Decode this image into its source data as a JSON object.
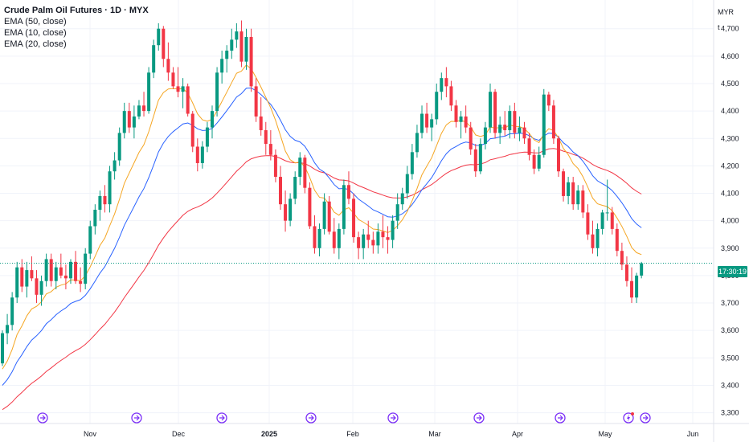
{
  "legend": {
    "title": "Crude Palm Oil Futures · 1D · MYX",
    "ema1": "EMA (50, close)",
    "ema2": "EMA (10, close)",
    "ema3": "EMA (20, close)"
  },
  "currency": "MYR",
  "unit": "t",
  "price_badge": "17:30:19",
  "colors": {
    "up": "#089981",
    "down": "#f23645",
    "ema50": "#f23645",
    "ema10": "#f5a623",
    "ema20": "#2962ff",
    "grid": "#f0f3fa",
    "event": "#7b2ff7",
    "last_line": "#089981"
  },
  "chart_data": {
    "type": "candlestick",
    "title": "Crude Palm Oil Futures · 1D · MYX",
    "y_ticks": [
      4700,
      4600,
      4500,
      4400,
      4300,
      4200,
      4100,
      4000,
      3900,
      3800,
      3700,
      3600,
      3500,
      3400,
      3300
    ],
    "y_range": [
      3290,
      4790
    ],
    "x_ticks": [
      "Nov",
      "Dec",
      "2025",
      "Feb",
      "Mar",
      "Apr",
      "May",
      "Jun"
    ],
    "last_price": 3845,
    "candles": [
      [
        3480,
        3600,
        3470,
        3590
      ],
      [
        3590,
        3660,
        3550,
        3620
      ],
      [
        3620,
        3740,
        3600,
        3720
      ],
      [
        3720,
        3850,
        3700,
        3830
      ],
      [
        3830,
        3860,
        3740,
        3760
      ],
      [
        3760,
        3850,
        3720,
        3820
      ],
      [
        3820,
        3870,
        3780,
        3790
      ],
      [
        3790,
        3820,
        3700,
        3730
      ],
      [
        3730,
        3800,
        3690,
        3780
      ],
      [
        3780,
        3880,
        3760,
        3860
      ],
      [
        3860,
        3880,
        3760,
        3780
      ],
      [
        3780,
        3850,
        3750,
        3830
      ],
      [
        3830,
        3880,
        3790,
        3800
      ],
      [
        3800,
        3840,
        3750,
        3790
      ],
      [
        3790,
        3860,
        3770,
        3850
      ],
      [
        3850,
        3890,
        3770,
        3780
      ],
      [
        3780,
        3830,
        3740,
        3770
      ],
      [
        3770,
        3900,
        3750,
        3880
      ],
      [
        3880,
        4000,
        3860,
        3980
      ],
      [
        3980,
        4060,
        3950,
        4040
      ],
      [
        4040,
        4110,
        4000,
        4090
      ],
      [
        4090,
        4130,
        4030,
        4060
      ],
      [
        4060,
        4200,
        4030,
        4180
      ],
      [
        4180,
        4250,
        4150,
        4220
      ],
      [
        4220,
        4340,
        4200,
        4320
      ],
      [
        4320,
        4430,
        4300,
        4400
      ],
      [
        4400,
        4430,
        4320,
        4340
      ],
      [
        4340,
        4420,
        4300,
        4380
      ],
      [
        4380,
        4440,
        4370,
        4420
      ],
      [
        4420,
        4470,
        4380,
        4400
      ],
      [
        4400,
        4560,
        4390,
        4540
      ],
      [
        4540,
        4660,
        4520,
        4640
      ],
      [
        4640,
        4720,
        4620,
        4700
      ],
      [
        4700,
        4710,
        4560,
        4590
      ],
      [
        4590,
        4650,
        4510,
        4540
      ],
      [
        4540,
        4560,
        4480,
        4490
      ],
      [
        4490,
        4560,
        4450,
        4470
      ],
      [
        4470,
        4520,
        4410,
        4490
      ],
      [
        4490,
        4500,
        4380,
        4390
      ],
      [
        4390,
        4400,
        4250,
        4270
      ],
      [
        4270,
        4300,
        4180,
        4210
      ],
      [
        4210,
        4290,
        4190,
        4270
      ],
      [
        4270,
        4360,
        4250,
        4340
      ],
      [
        4340,
        4420,
        4300,
        4400
      ],
      [
        4400,
        4560,
        4380,
        4540
      ],
      [
        4540,
        4620,
        4500,
        4590
      ],
      [
        4590,
        4640,
        4540,
        4620
      ],
      [
        4620,
        4700,
        4590,
        4660
      ],
      [
        4660,
        4720,
        4630,
        4690
      ],
      [
        4690,
        4730,
        4560,
        4580
      ],
      [
        4580,
        4700,
        4550,
        4670
      ],
      [
        4670,
        4700,
        4470,
        4490
      ],
      [
        4490,
        4520,
        4360,
        4380
      ],
      [
        4380,
        4450,
        4310,
        4330
      ],
      [
        4330,
        4360,
        4240,
        4280
      ],
      [
        4280,
        4330,
        4220,
        4240
      ],
      [
        4240,
        4260,
        4140,
        4160
      ],
      [
        4160,
        4200,
        4040,
        4060
      ],
      [
        4060,
        4110,
        3960,
        4000
      ],
      [
        4000,
        4100,
        3980,
        4080
      ],
      [
        4080,
        4180,
        4060,
        4160
      ],
      [
        4160,
        4250,
        4130,
        4230
      ],
      [
        4230,
        4240,
        4100,
        4120
      ],
      [
        4120,
        4140,
        3970,
        3980
      ],
      [
        3980,
        4020,
        3880,
        3900
      ],
      [
        3900,
        3990,
        3870,
        3970
      ],
      [
        3970,
        4100,
        3950,
        4070
      ],
      [
        4070,
        4090,
        3950,
        3960
      ],
      [
        3960,
        4010,
        3880,
        3900
      ],
      [
        3900,
        3990,
        3860,
        3970
      ],
      [
        3970,
        4150,
        3950,
        4130
      ],
      [
        4130,
        4180,
        4060,
        4080
      ],
      [
        4080,
        4100,
        3920,
        3940
      ],
      [
        3940,
        3960,
        3860,
        3900
      ],
      [
        3900,
        3970,
        3860,
        3950
      ],
      [
        3950,
        4000,
        3900,
        3930
      ],
      [
        3930,
        3960,
        3880,
        3910
      ],
      [
        3910,
        3990,
        3880,
        3960
      ],
      [
        3960,
        4020,
        3900,
        3940
      ],
      [
        3940,
        3980,
        3880,
        3930
      ],
      [
        3930,
        4020,
        3900,
        4000
      ],
      [
        4000,
        4100,
        3970,
        4060
      ],
      [
        4060,
        4120,
        4040,
        4100
      ],
      [
        4100,
        4200,
        4080,
        4170
      ],
      [
        4170,
        4280,
        4150,
        4250
      ],
      [
        4250,
        4350,
        4230,
        4320
      ],
      [
        4320,
        4420,
        4300,
        4390
      ],
      [
        4390,
        4430,
        4320,
        4340
      ],
      [
        4340,
        4390,
        4290,
        4370
      ],
      [
        4370,
        4500,
        4350,
        4470
      ],
      [
        4470,
        4540,
        4440,
        4520
      ],
      [
        4520,
        4560,
        4450,
        4490
      ],
      [
        4490,
        4510,
        4400,
        4420
      ],
      [
        4420,
        4440,
        4340,
        4360
      ],
      [
        4360,
        4400,
        4300,
        4380
      ],
      [
        4380,
        4420,
        4320,
        4340
      ],
      [
        4340,
        4360,
        4240,
        4260
      ],
      [
        4260,
        4280,
        4160,
        4180
      ],
      [
        4180,
        4300,
        4170,
        4280
      ],
      [
        4280,
        4360,
        4260,
        4340
      ],
      [
        4340,
        4500,
        4320,
        4470
      ],
      [
        4470,
        4480,
        4300,
        4320
      ],
      [
        4320,
        4380,
        4280,
        4350
      ],
      [
        4350,
        4400,
        4310,
        4330
      ],
      [
        4330,
        4420,
        4300,
        4400
      ],
      [
        4400,
        4430,
        4300,
        4320
      ],
      [
        4320,
        4380,
        4290,
        4340
      ],
      [
        4340,
        4360,
        4280,
        4300
      ],
      [
        4300,
        4320,
        4220,
        4240
      ],
      [
        4240,
        4260,
        4170,
        4190
      ],
      [
        4190,
        4270,
        4180,
        4240
      ],
      [
        4240,
        4480,
        4230,
        4460
      ],
      [
        4460,
        4470,
        4400,
        4420
      ],
      [
        4420,
        4440,
        4280,
        4300
      ],
      [
        4300,
        4310,
        4160,
        4180
      ],
      [
        4180,
        4190,
        4070,
        4090
      ],
      [
        4090,
        4160,
        4060,
        4140
      ],
      [
        4140,
        4160,
        4040,
        4060
      ],
      [
        4060,
        4130,
        4040,
        4110
      ],
      [
        4110,
        4130,
        4010,
        4030
      ],
      [
        4030,
        4060,
        3930,
        3950
      ],
      [
        3950,
        4000,
        3880,
        3900
      ],
      [
        3900,
        3990,
        3870,
        3970
      ],
      [
        3970,
        4040,
        3950,
        4030
      ],
      [
        4030,
        4150,
        4000,
        4030
      ],
      [
        4030,
        4050,
        3950,
        3970
      ],
      [
        3970,
        3990,
        3870,
        3890
      ],
      [
        3890,
        3920,
        3820,
        3840
      ],
      [
        3840,
        3870,
        3760,
        3780
      ],
      [
        3780,
        3830,
        3700,
        3720
      ],
      [
        3720,
        3810,
        3700,
        3800
      ],
      [
        3800,
        3850,
        3790,
        3845
      ]
    ]
  }
}
